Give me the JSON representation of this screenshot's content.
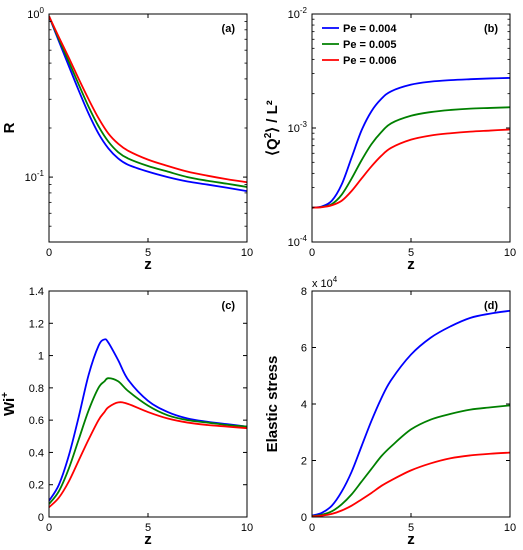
{
  "series_styles": [
    {
      "name": "Pe = 0.004",
      "color": "#0000ff"
    },
    {
      "name": "Pe = 0.005",
      "color": "#008000"
    },
    {
      "name": "Pe = 0.006",
      "color": "#ff0000"
    }
  ],
  "chart_data": [
    {
      "type": "line",
      "panel_label": "(a)",
      "xlabel": "z",
      "ylabel": "R",
      "xlim": [
        0,
        10
      ],
      "ylim": [
        0.04,
        1
      ],
      "yscale": "log",
      "xticks": [
        0,
        5,
        10
      ],
      "yticks": [
        {
          "v": 1,
          "base": "10",
          "exp": "0"
        },
        {
          "v": 0.1,
          "base": "10",
          "exp": "-1"
        }
      ],
      "x": [
        0,
        0.5,
        1,
        1.5,
        2,
        2.5,
        3,
        3.5,
        4,
        5,
        6,
        7,
        8,
        9,
        10
      ],
      "series": [
        {
          "values": [
            0.97,
            0.68,
            0.48,
            0.34,
            0.245,
            0.185,
            0.15,
            0.13,
            0.119,
            0.108,
            0.1,
            0.094,
            0.09,
            0.086,
            0.082
          ]
        },
        {
          "values": [
            0.97,
            0.7,
            0.51,
            0.37,
            0.27,
            0.205,
            0.165,
            0.142,
            0.13,
            0.117,
            0.108,
            0.1,
            0.095,
            0.091,
            0.087
          ]
        },
        {
          "values": [
            0.97,
            0.72,
            0.54,
            0.4,
            0.3,
            0.23,
            0.185,
            0.16,
            0.145,
            0.128,
            0.117,
            0.108,
            0.102,
            0.097,
            0.093
          ]
        }
      ]
    },
    {
      "type": "line",
      "panel_label": "(b)",
      "xlabel": "z",
      "ylabel": "⟨Q²⟩ / L²",
      "xlim": [
        0,
        10
      ],
      "ylim": [
        0.0001,
        0.01
      ],
      "yscale": "log",
      "xticks": [
        0,
        5,
        10
      ],
      "yticks": [
        {
          "v": 0.01,
          "base": "10",
          "exp": "-2"
        },
        {
          "v": 0.001,
          "base": "10",
          "exp": "-3"
        },
        {
          "v": 0.0001,
          "base": "10",
          "exp": "-4"
        }
      ],
      "legend": {
        "position": "top-left",
        "entries": [
          "Pe = 0.004",
          "Pe = 0.005",
          "Pe = 0.006"
        ]
      },
      "x": [
        0,
        0.5,
        1,
        1.5,
        2,
        2.5,
        3,
        3.5,
        4,
        5,
        6,
        7,
        8,
        9,
        10
      ],
      "series": [
        {
          "name": "Pe = 0.004",
          "values": [
            0.0002,
            0.000205,
            0.00023,
            0.00032,
            0.00055,
            0.00095,
            0.0014,
            0.0018,
            0.0021,
            0.0024,
            0.00255,
            0.00263,
            0.00268,
            0.00272,
            0.00275
          ]
        },
        {
          "name": "Pe = 0.005",
          "values": [
            0.0002,
            0.000203,
            0.000215,
            0.00026,
            0.00036,
            0.00052,
            0.00072,
            0.00092,
            0.0011,
            0.00128,
            0.00138,
            0.00144,
            0.00148,
            0.0015,
            0.00152
          ]
        },
        {
          "name": "Pe = 0.006",
          "values": [
            0.0002,
            0.000202,
            0.00021,
            0.00023,
            0.00028,
            0.00036,
            0.00046,
            0.00057,
            0.00067,
            0.00079,
            0.00086,
            0.0009,
            0.00093,
            0.00095,
            0.00097
          ]
        }
      ]
    },
    {
      "type": "line",
      "panel_label": "(c)",
      "xlabel": "z",
      "ylabel": "Wi⁺",
      "xlim": [
        0,
        10
      ],
      "ylim": [
        0,
        1.4
      ],
      "yscale": "linear",
      "xticks": [
        0,
        5,
        10
      ],
      "yticks": [
        {
          "v": 0,
          "label": "0"
        },
        {
          "v": 0.2,
          "label": "0.2"
        },
        {
          "v": 0.4,
          "label": "0.4"
        },
        {
          "v": 0.6,
          "label": "0.6"
        },
        {
          "v": 0.8,
          "label": "0.8"
        },
        {
          "v": 1.0,
          "label": "1"
        },
        {
          "v": 1.2,
          "label": "1.2"
        },
        {
          "v": 1.4,
          "label": "1.4"
        }
      ],
      "x": [
        0,
        0.5,
        1,
        1.5,
        2,
        2.5,
        2.8,
        3,
        3.5,
        4,
        5,
        6,
        7,
        8,
        9,
        10
      ],
      "series": [
        {
          "values": [
            0.1,
            0.2,
            0.38,
            0.62,
            0.88,
            1.06,
            1.1,
            1.08,
            0.97,
            0.85,
            0.72,
            0.65,
            0.61,
            0.59,
            0.575,
            0.56
          ]
        },
        {
          "values": [
            0.08,
            0.16,
            0.3,
            0.48,
            0.66,
            0.8,
            0.84,
            0.86,
            0.84,
            0.78,
            0.69,
            0.63,
            0.6,
            0.585,
            0.57,
            0.56
          ]
        },
        {
          "values": [
            0.06,
            0.12,
            0.22,
            0.35,
            0.48,
            0.6,
            0.65,
            0.68,
            0.71,
            0.7,
            0.65,
            0.61,
            0.585,
            0.57,
            0.56,
            0.55
          ]
        }
      ]
    },
    {
      "type": "line",
      "panel_label": "(d)",
      "xlabel": "z",
      "ylabel": "Elastic stress",
      "xlim": [
        0,
        10
      ],
      "ylim": [
        0,
        80000
      ],
      "yscale": "linear",
      "ymultiplier": {
        "base": "x 10",
        "exp": "4"
      },
      "xticks": [
        0,
        5,
        10
      ],
      "yticks": [
        {
          "v": 0,
          "label": "0"
        },
        {
          "v": 20000,
          "label": "2"
        },
        {
          "v": 40000,
          "label": "4"
        },
        {
          "v": 60000,
          "label": "6"
        },
        {
          "v": 80000,
          "label": "8"
        }
      ],
      "x": [
        0,
        0.5,
        1,
        1.5,
        2,
        2.5,
        3,
        3.5,
        4,
        5,
        6,
        7,
        8,
        9,
        10
      ],
      "series": [
        {
          "values": [
            500,
            1500,
            4000,
            9000,
            16000,
            25000,
            34000,
            42000,
            48500,
            57500,
            63500,
            67500,
            70500,
            72000,
            73000
          ]
        },
        {
          "values": [
            300,
            800,
            2000,
            4500,
            8000,
            12500,
            17000,
            21500,
            25000,
            31000,
            34500,
            36500,
            38000,
            38800,
            39500
          ]
        },
        {
          "values": [
            200,
            500,
            1100,
            2300,
            4000,
            6200,
            8500,
            11000,
            13000,
            16500,
            19000,
            20800,
            21800,
            22400,
            22800
          ]
        }
      ]
    }
  ]
}
